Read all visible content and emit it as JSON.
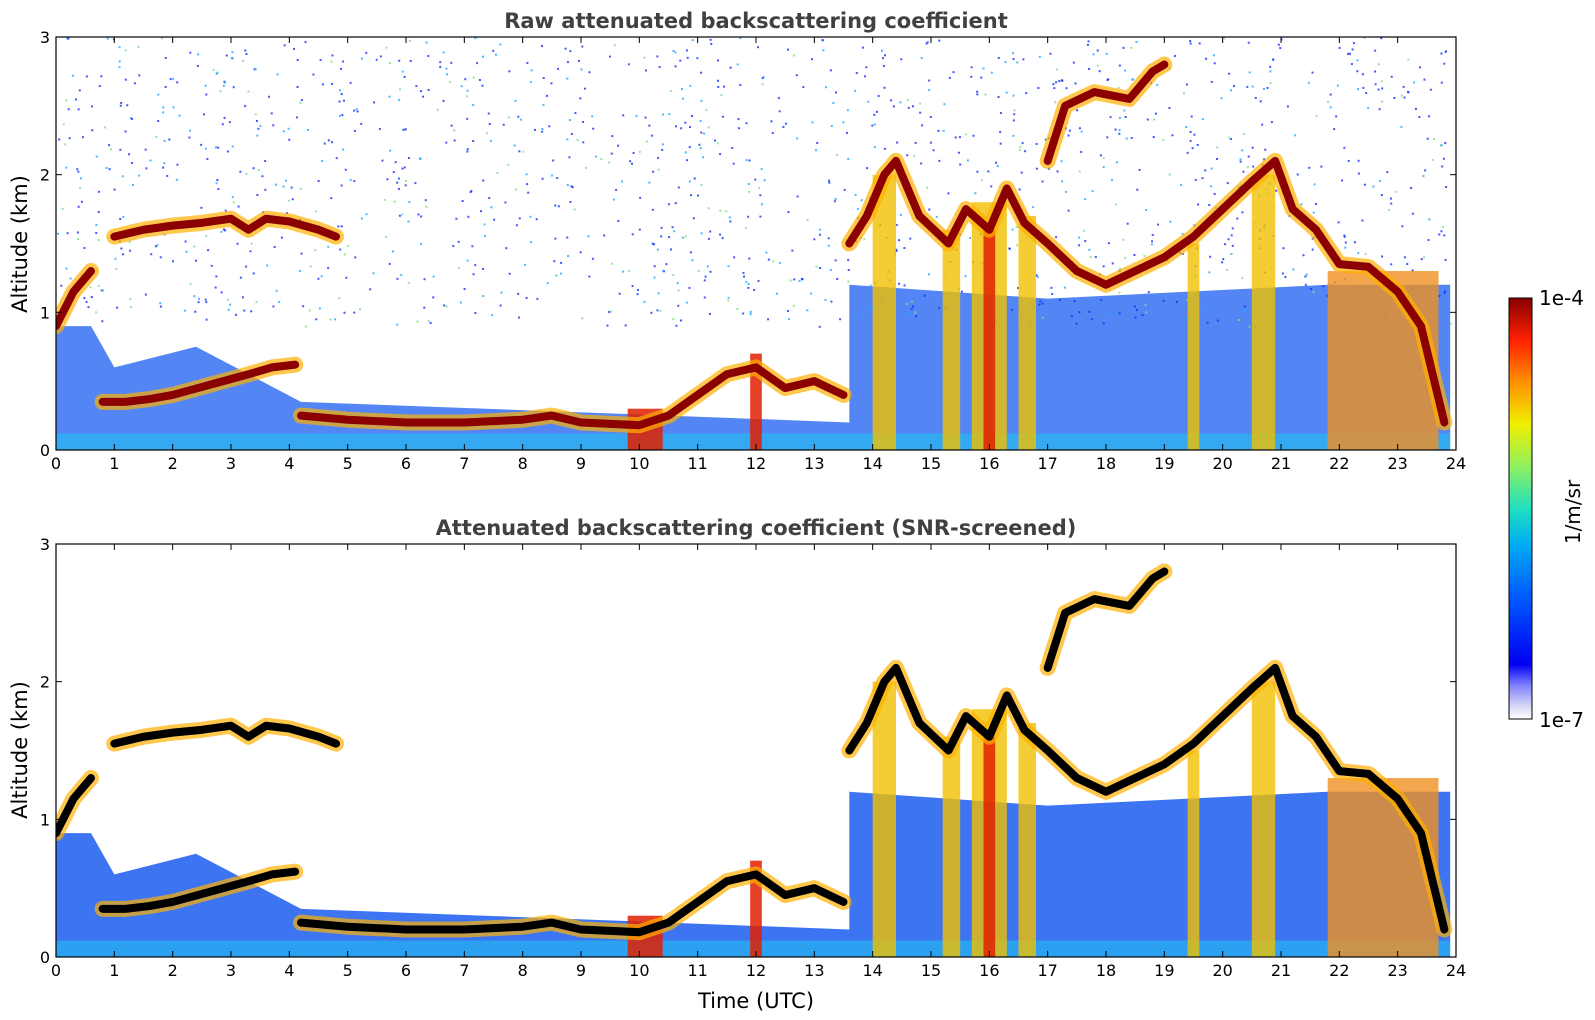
{
  "chart_data": [
    {
      "type": "heatmap",
      "title": "Raw attenuated backscattering coefficient",
      "xlabel": "",
      "ylabel": "Altitude (km)",
      "xlim": [
        0,
        24
      ],
      "ylim": [
        0,
        3
      ],
      "xticks": [
        "0",
        "1",
        "2",
        "3",
        "4",
        "5",
        "6",
        "7",
        "8",
        "9",
        "10",
        "11",
        "12",
        "13",
        "14",
        "15",
        "16",
        "17",
        "18",
        "19",
        "20",
        "21",
        "22",
        "23",
        "24"
      ],
      "yticks": [
        "0",
        "1",
        "2",
        "3"
      ],
      "screened": false,
      "layers": [
        {
          "name": "",
          "points": [
            [
              0.0,
              0.9
            ],
            [
              0.3,
              1.15
            ],
            [
              0.6,
              1.3
            ]
          ]
        },
        {
          "name": "",
          "points": [
            [
              1.0,
              1.55
            ],
            [
              1.5,
              1.6
            ],
            [
              2.0,
              1.63
            ],
            [
              2.5,
              1.65
            ],
            [
              3.0,
              1.68
            ],
            [
              3.3,
              1.6
            ],
            [
              3.6,
              1.68
            ],
            [
              4.0,
              1.66
            ],
            [
              4.5,
              1.6
            ],
            [
              4.8,
              1.55
            ]
          ]
        },
        {
          "name": "",
          "points": [
            [
              0.8,
              0.35
            ],
            [
              1.2,
              0.35
            ],
            [
              1.6,
              0.37
            ],
            [
              2.0,
              0.4
            ],
            [
              3.3,
              0.55
            ],
            [
              3.7,
              0.6
            ],
            [
              4.1,
              0.62
            ]
          ]
        },
        {
          "name": "",
          "points": [
            [
              4.2,
              0.25
            ],
            [
              5.0,
              0.22
            ],
            [
              6.0,
              0.2
            ],
            [
              7.0,
              0.2
            ],
            [
              8.0,
              0.22
            ],
            [
              8.5,
              0.25
            ],
            [
              9.0,
              0.2
            ],
            [
              10.0,
              0.18
            ],
            [
              10.5,
              0.25
            ],
            [
              11.0,
              0.4
            ],
            [
              11.5,
              0.55
            ],
            [
              12.0,
              0.6
            ],
            [
              12.5,
              0.45
            ],
            [
              13.0,
              0.5
            ],
            [
              13.5,
              0.4
            ]
          ]
        },
        {
          "name": "",
          "points": [
            [
              13.6,
              1.5
            ],
            [
              13.9,
              1.7
            ],
            [
              14.2,
              2.0
            ],
            [
              14.4,
              2.1
            ],
            [
              14.8,
              1.7
            ],
            [
              15.3,
              1.5
            ],
            [
              15.6,
              1.75
            ],
            [
              16.0,
              1.6
            ],
            [
              16.3,
              1.9
            ],
            [
              16.6,
              1.65
            ],
            [
              17.0,
              1.5
            ],
            [
              17.5,
              1.3
            ],
            [
              18.0,
              1.2
            ],
            [
              18.5,
              1.3
            ],
            [
              19.0,
              1.4
            ],
            [
              19.5,
              1.55
            ],
            [
              20.0,
              1.75
            ],
            [
              20.5,
              1.95
            ],
            [
              20.9,
              2.1
            ],
            [
              21.2,
              1.75
            ],
            [
              21.6,
              1.6
            ],
            [
              22.0,
              1.35
            ],
            [
              22.5,
              1.33
            ],
            [
              23.0,
              1.15
            ],
            [
              23.4,
              0.9
            ],
            [
              23.8,
              0.2
            ]
          ]
        },
        {
          "name": "",
          "points": [
            [
              17.0,
              2.1
            ],
            [
              17.3,
              2.5
            ],
            [
              17.8,
              2.6
            ],
            [
              18.4,
              2.55
            ],
            [
              18.8,
              2.75
            ],
            [
              19.0,
              2.8
            ]
          ]
        }
      ],
      "colorbar": {
        "min_label": "1e-7",
        "max_label": "1e-4",
        "label": "1/m/sr",
        "colormap": "jet"
      }
    },
    {
      "type": "heatmap",
      "title": "Attenuated backscattering coefficient (SNR-screened)",
      "xlabel": "Time (UTC)",
      "ylabel": "Altitude (km)",
      "xlim": [
        0,
        24
      ],
      "ylim": [
        0,
        3
      ],
      "xticks": [
        "0",
        "1",
        "2",
        "3",
        "4",
        "5",
        "6",
        "7",
        "8",
        "9",
        "10",
        "11",
        "12",
        "13",
        "14",
        "15",
        "16",
        "17",
        "18",
        "19",
        "20",
        "21",
        "22",
        "23",
        "24"
      ],
      "yticks": [
        "0",
        "1",
        "2",
        "3"
      ],
      "screened": true,
      "saturated_color": "#000000"
    }
  ],
  "colors": {
    "title": "#404040",
    "background": "#ffffff",
    "saturated": "#000000"
  }
}
